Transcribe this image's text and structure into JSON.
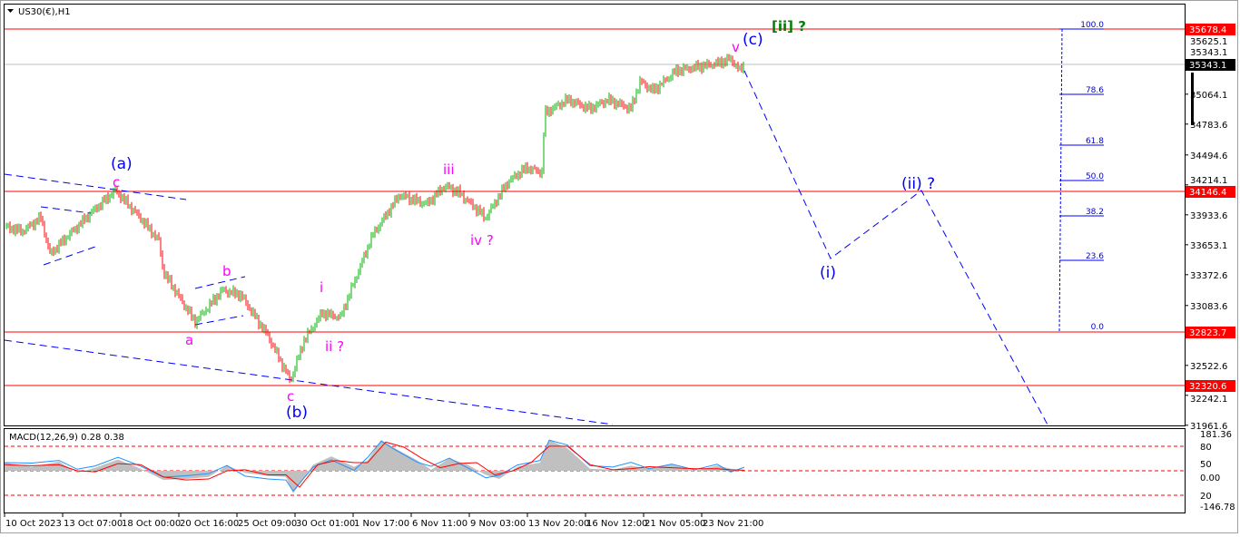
{
  "window": {
    "title": "US30(€),H1",
    "menu_icon": "triangle-down-icon"
  },
  "colors": {
    "up": "#00b000",
    "down": "#ff0000",
    "level_line": "#ff0000",
    "current_line": "#c0c0c0",
    "wave_blue": "#0000ff",
    "wave_magenta": "#ff00ff",
    "wave_green": "#008000",
    "macd_hist": "#c0c0c0",
    "macd_main": "#1e90ff",
    "macd_signal": "#ff0000"
  },
  "chart_data": {
    "type": "candlestick",
    "symbol": "US30(€)",
    "timeframe": "H1",
    "x_tick_labels": [
      "10 Oct 2023",
      "13 Oct 07:00",
      "18 Oct 00:00",
      "20 Oct 16:00",
      "25 Oct 09:00",
      "30 Oct 01:00",
      "1 Nov 17:00",
      "6 Nov 11:00",
      "9 Nov 03:00",
      "13 Nov 20:00",
      "16 Nov 12:00",
      "21 Nov 05:00",
      "23 Nov 21:00"
    ],
    "y_tick_labels": [
      "35625.1",
      "35343.1",
      "35064.1",
      "34783.6",
      "34494.6",
      "34214.1",
      "33933.6",
      "33653.1",
      "33372.6",
      "33083.6",
      "32522.6",
      "32242.1",
      "31961.6"
    ],
    "ylim": [
      31961.6,
      35625.1
    ],
    "price_path": [
      [
        0,
        33822
      ],
      [
        20,
        33779
      ],
      [
        40,
        33907
      ],
      [
        50,
        33567
      ],
      [
        95,
        33949
      ],
      [
        122,
        34162
      ],
      [
        145,
        33949
      ],
      [
        170,
        33694
      ],
      [
        175,
        33397
      ],
      [
        210,
        32929
      ],
      [
        240,
        33227
      ],
      [
        260,
        33184
      ],
      [
        290,
        32802
      ],
      [
        315,
        32377
      ],
      [
        330,
        32759
      ],
      [
        350,
        33014
      ],
      [
        370,
        32972
      ],
      [
        405,
        33737
      ],
      [
        435,
        34119
      ],
      [
        465,
        34034
      ],
      [
        485,
        34204
      ],
      [
        500,
        34145
      ],
      [
        530,
        33907
      ],
      [
        555,
        34247
      ],
      [
        575,
        34374
      ],
      [
        592,
        34332
      ],
      [
        595,
        34884
      ],
      [
        620,
        35012
      ],
      [
        645,
        34927
      ],
      [
        665,
        35012
      ],
      [
        690,
        34927
      ],
      [
        700,
        35182
      ],
      [
        715,
        35097
      ],
      [
        740,
        35284
      ],
      [
        785,
        35352
      ],
      [
        800,
        35394
      ],
      [
        810,
        35284
      ],
      [
        814,
        35343
      ]
    ],
    "current_price": "35343.1",
    "levels": [
      "35678.4",
      "34146.4",
      "32823.7",
      "32320.6"
    ],
    "fibonacci": {
      "labels": [
        "100.0",
        "78.6",
        "61.8",
        "50.0",
        "38.2",
        "23.6",
        "0.0"
      ]
    },
    "wave_labels": {
      "a_paren": "(a)",
      "c1": "c",
      "a": "a",
      "b": "b",
      "c2": "c",
      "b_paren": "(b)",
      "i": "i",
      "ii": "ii ?",
      "iii": "iii",
      "iv": "iv ?",
      "v": "v",
      "c_paren": "(c)",
      "ii_bracket": "[ii] ?",
      "i_paren": "(i)",
      "ii_paren": "(ii) ?"
    },
    "indicator": {
      "label": "MACD(12,26,9) 0.28 0.38",
      "axis_labels": [
        "181.36",
        "80",
        "50",
        "0.00",
        "20",
        "-146.78"
      ],
      "ylim": [
        -146.78,
        181.36
      ],
      "main": [
        [
          0,
          40
        ],
        [
          30,
          20
        ],
        [
          60,
          45
        ],
        [
          80,
          -10
        ],
        [
          100,
          15
        ],
        [
          125,
          55
        ],
        [
          150,
          10
        ],
        [
          175,
          -45
        ],
        [
          200,
          -40
        ],
        [
          225,
          -30
        ],
        [
          245,
          25
        ],
        [
          265,
          -10
        ],
        [
          290,
          -25
        ],
        [
          310,
          -30
        ],
        [
          318,
          -110
        ],
        [
          340,
          30
        ],
        [
          360,
          70
        ],
        [
          385,
          20
        ],
        [
          400,
          50
        ],
        [
          415,
          150
        ],
        [
          430,
          110
        ],
        [
          455,
          50
        ],
        [
          470,
          5
        ],
        [
          490,
          60
        ],
        [
          510,
          30
        ],
        [
          530,
          -20
        ],
        [
          545,
          -40
        ],
        [
          565,
          20
        ],
        [
          590,
          40
        ],
        [
          600,
          150
        ],
        [
          620,
          110
        ],
        [
          645,
          10
        ],
        [
          670,
          5
        ],
        [
          690,
          25
        ],
        [
          710,
          10
        ],
        [
          735,
          30
        ],
        [
          760,
          0
        ],
        [
          785,
          25
        ],
        [
          800,
          10
        ],
        [
          815,
          0
        ]
      ],
      "signal": [
        [
          0,
          30
        ],
        [
          30,
          25
        ],
        [
          60,
          30
        ],
        [
          80,
          0
        ],
        [
          100,
          -5
        ],
        [
          125,
          35
        ],
        [
          150,
          30
        ],
        [
          175,
          -30
        ],
        [
          200,
          -45
        ],
        [
          225,
          -40
        ],
        [
          245,
          0
        ],
        [
          265,
          5
        ],
        [
          290,
          -20
        ],
        [
          310,
          -20
        ],
        [
          325,
          -80
        ],
        [
          345,
          30
        ],
        [
          365,
          50
        ],
        [
          385,
          40
        ],
        [
          400,
          40
        ],
        [
          420,
          140
        ],
        [
          440,
          115
        ],
        [
          460,
          60
        ],
        [
          480,
          15
        ],
        [
          500,
          35
        ],
        [
          520,
          40
        ],
        [
          540,
          -20
        ],
        [
          560,
          0
        ],
        [
          580,
          40
        ],
        [
          600,
          120
        ],
        [
          620,
          120
        ],
        [
          645,
          30
        ],
        [
          670,
          5
        ],
        [
          690,
          10
        ],
        [
          710,
          20
        ],
        [
          735,
          15
        ],
        [
          760,
          10
        ],
        [
          785,
          10
        ],
        [
          800,
          5
        ],
        [
          815,
          3
        ]
      ]
    }
  }
}
